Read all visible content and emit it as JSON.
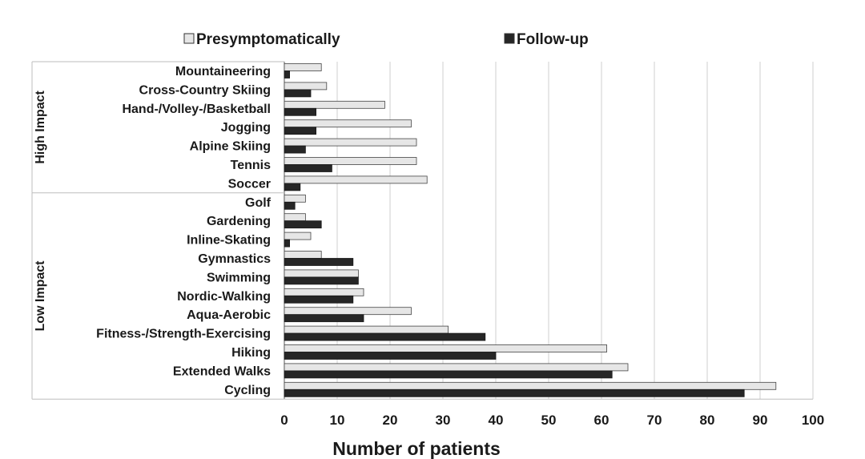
{
  "chart_data": {
    "type": "bar",
    "orientation": "horizontal",
    "categories": [
      "Mountaineering",
      "Cross-Country Skiing",
      "Hand-/Volley-/Basketball",
      "Jogging",
      "Alpine Skiing",
      "Tennis",
      "Soccer",
      "Golf",
      "Gardening",
      "Inline-Skating",
      "Gymnastics",
      "Swimming",
      "Nordic-Walking",
      "Aqua-Aerobic",
      "Fitness-/Strength-Exercising",
      "Hiking",
      "Extended Walks",
      "Cycling"
    ],
    "groups": [
      {
        "label": "High Impact",
        "categories": [
          "Mountaineering",
          "Cross-Country Skiing",
          "Hand-/Volley-/Basketball",
          "Jogging",
          "Alpine Skiing",
          "Tennis",
          "Soccer"
        ]
      },
      {
        "label": "Low Impact",
        "categories": [
          "Golf",
          "Gardening",
          "Inline-Skating",
          "Gymnastics",
          "Swimming",
          "Nordic-Walking",
          "Aqua-Aerobic",
          "Fitness-/Strength-Exercising",
          "Hiking",
          "Extended Walks",
          "Cycling"
        ]
      }
    ],
    "series": [
      {
        "name": "Presymptomatically",
        "color": "#e6e6e6",
        "values": [
          7,
          8,
          19,
          24,
          25,
          25,
          27,
          4,
          4,
          5,
          7,
          14,
          15,
          24,
          31,
          61,
          65,
          93
        ]
      },
      {
        "name": "Follow-up",
        "color": "#262626",
        "values": [
          1,
          5,
          6,
          6,
          4,
          9,
          3,
          2,
          7,
          1,
          13,
          14,
          13,
          15,
          38,
          40,
          62,
          87
        ]
      }
    ],
    "xlim": [
      0,
      100
    ],
    "xticks": [
      0,
      10,
      20,
      30,
      40,
      50,
      60,
      70,
      80,
      90,
      100
    ],
    "xlabel": "Number of patients",
    "ylabel": "",
    "grid": "vertical",
    "legend_position": "top"
  }
}
